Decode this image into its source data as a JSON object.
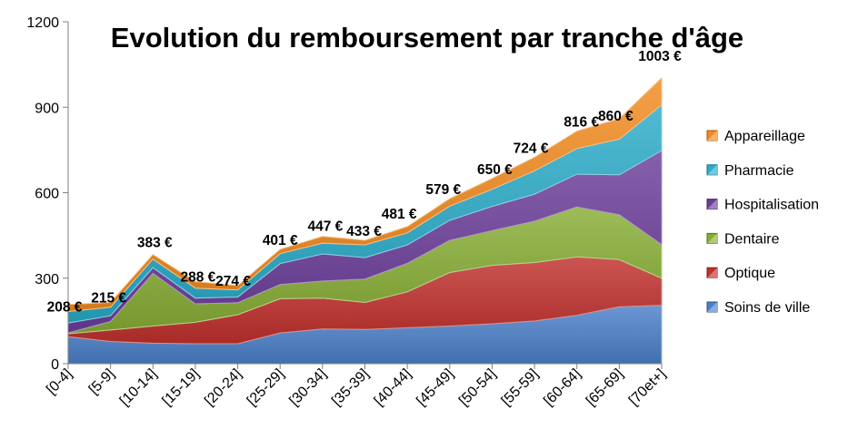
{
  "chart_data": {
    "type": "area",
    "title": "Evolution du remboursement par tranche d'âge",
    "xlabel": "",
    "ylabel": "",
    "ylim": [
      0,
      1200
    ],
    "yticks": [
      0,
      300,
      600,
      900,
      1200
    ],
    "grid": false,
    "legend_position": "right",
    "stacked": true,
    "categories": [
      "[0-4]",
      "[5-9]",
      "[10-14]",
      "[15-19]",
      "[20-24]",
      "[25-29]",
      "[30-34]",
      "[35-39]",
      "[40-44]",
      "[45-49]",
      "[50-54]",
      "[55-59]",
      "[60-64]",
      "[65-69]",
      "[70et+]"
    ],
    "series": [
      {
        "name": "Soins de ville",
        "color": "#4a7fc8",
        "values": [
          95,
          78,
          72,
          70,
          70,
          108,
          122,
          120,
          126,
          132,
          140,
          150,
          170,
          200,
          205
        ]
      },
      {
        "name": "Optique",
        "color": "#c0302c",
        "values": [
          10,
          40,
          60,
          75,
          102,
          120,
          108,
          95,
          126,
          188,
          205,
          205,
          205,
          165,
          95
        ]
      },
      {
        "name": "Dentaire",
        "color": "#86ad33",
        "values": [
          3,
          30,
          185,
          65,
          42,
          50,
          60,
          82,
          100,
          113,
          122,
          145,
          175,
          158,
          118
        ]
      },
      {
        "name": "Hospitalisation",
        "color": "#6b3d9a",
        "values": [
          35,
          20,
          20,
          20,
          20,
          73,
          95,
          75,
          65,
          70,
          85,
          95,
          115,
          140,
          330
        ]
      },
      {
        "name": "Pharmacie",
        "color": "#2aabc8",
        "values": [
          40,
          30,
          30,
          35,
          25,
          35,
          38,
          45,
          42,
          50,
          60,
          82,
          90,
          125,
          160
        ]
      },
      {
        "name": "Appareillage",
        "color": "#f28a1e",
        "values": [
          25,
          17,
          16,
          23,
          15,
          15,
          24,
          16,
          22,
          26,
          38,
          47,
          61,
          72,
          95
        ]
      }
    ],
    "data_labels": [
      "208 €",
      "215 €",
      "383 €",
      "288 €",
      "274 €",
      "401 €",
      "447 €",
      "433 €",
      "481 €",
      "579 €",
      "650 €",
      "724 €",
      "816 €",
      "860 €",
      "1003 €"
    ]
  }
}
